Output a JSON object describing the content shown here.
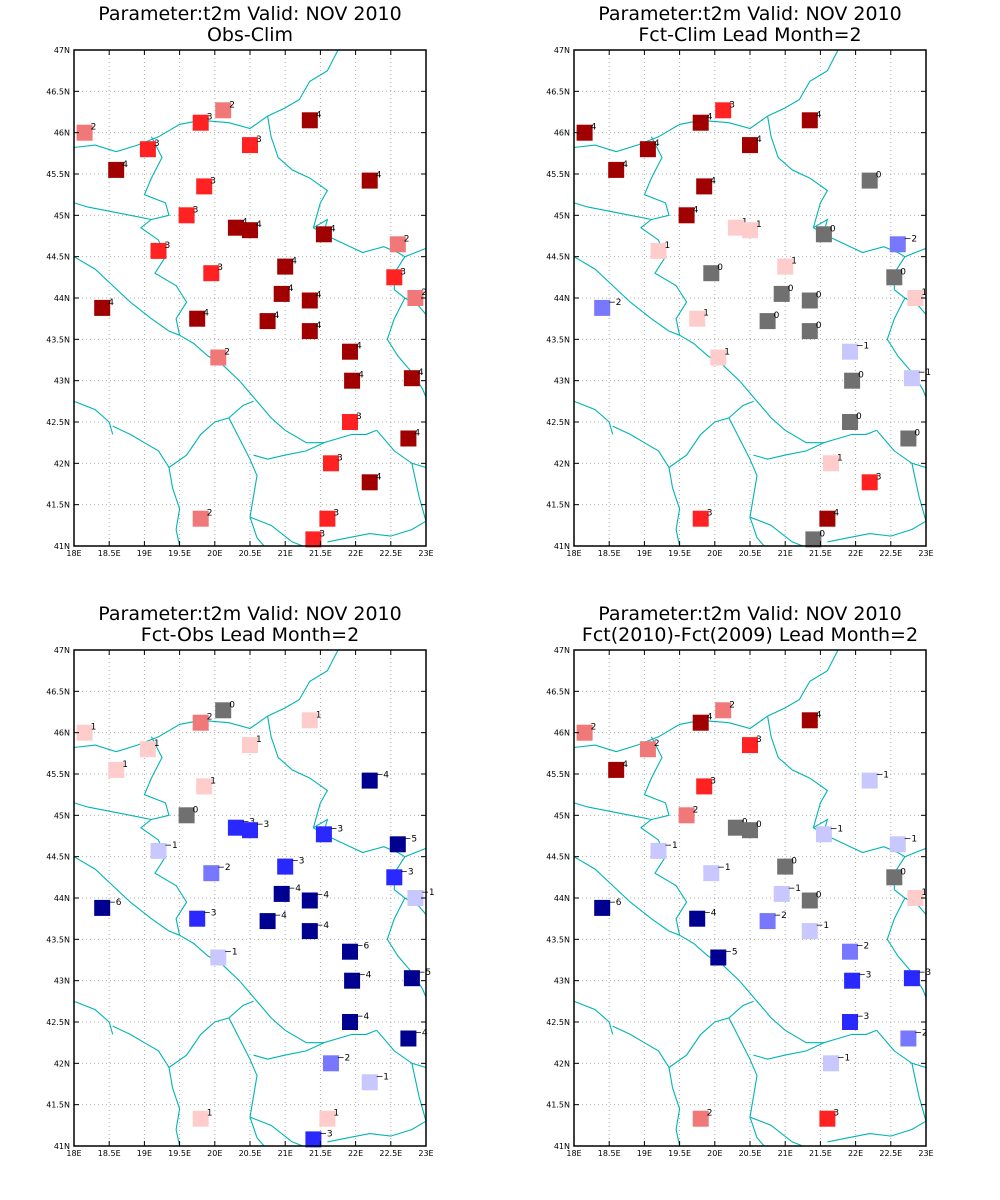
{
  "domain_view": "station-anomaly-maps",
  "colors": {
    "frame": "#000000",
    "grid": "#b0b0b0",
    "coast": "#00b4b4",
    "zero": "#707070",
    "pos1": "#ffcccc",
    "pos2": "#f07878",
    "pos3": "#ff2222",
    "pos4": "#a00000",
    "neg1": "#c8c8ff",
    "neg2": "#7878ff",
    "neg3": "#2828ff",
    "neg4": "#000090"
  },
  "axes": {
    "lon_ticks": [
      "18E",
      "18.5E",
      "19E",
      "19.5E",
      "20E",
      "20.5E",
      "21E",
      "21.5E",
      "22E",
      "22.5E",
      "23E"
    ],
    "lat_ticks": [
      "41N",
      "41.5N",
      "42N",
      "42.5N",
      "43N",
      "43.5N",
      "44N",
      "44.5N",
      "45N",
      "45.5N",
      "46N",
      "46.5N",
      "47N"
    ],
    "lon_range": [
      18,
      23
    ],
    "lat_range": [
      41,
      47
    ]
  },
  "stations": [
    [
      18.15,
      46.0
    ],
    [
      18.6,
      45.55
    ],
    [
      19.05,
      45.8
    ],
    [
      19.8,
      46.12
    ],
    [
      20.12,
      46.27
    ],
    [
      20.5,
      45.85
    ],
    [
      21.35,
      46.15
    ],
    [
      19.85,
      45.35
    ],
    [
      22.2,
      45.42
    ],
    [
      19.6,
      45.0
    ],
    [
      20.3,
      44.85
    ],
    [
      20.5,
      44.82
    ],
    [
      21.55,
      44.77
    ],
    [
      22.6,
      44.65
    ],
    [
      19.2,
      44.57
    ],
    [
      19.95,
      44.3
    ],
    [
      21.0,
      44.38
    ],
    [
      22.55,
      44.25
    ],
    [
      22.85,
      44.0
    ],
    [
      20.95,
      44.05
    ],
    [
      21.35,
      43.97
    ],
    [
      18.4,
      43.88
    ],
    [
      19.75,
      43.75
    ],
    [
      20.75,
      43.72
    ],
    [
      21.35,
      43.6
    ],
    [
      20.05,
      43.28
    ],
    [
      21.92,
      43.35
    ],
    [
      21.95,
      43.0
    ],
    [
      22.8,
      43.03
    ],
    [
      21.92,
      42.5
    ],
    [
      22.75,
      42.3
    ],
    [
      21.65,
      42.0
    ],
    [
      22.2,
      41.77
    ],
    [
      19.8,
      41.33
    ],
    [
      21.6,
      41.33
    ],
    [
      21.4,
      41.08
    ]
  ],
  "panels": [
    {
      "title1": "Parameter:t2m Valid: NOV 2010",
      "title2": "Obs-Clim",
      "values": [
        2,
        4,
        3,
        3,
        2,
        3,
        4,
        3,
        4,
        3,
        4,
        4,
        4,
        2,
        3,
        3,
        4,
        3,
        2,
        4,
        4,
        4,
        4,
        4,
        4,
        2,
        4,
        4,
        4,
        3,
        4,
        3,
        4,
        2,
        3,
        3
      ]
    },
    {
      "title1": "Parameter:t2m Valid: NOV 2010",
      "title2": "Fct-Clim Lead Month=2",
      "values": [
        4,
        4,
        4,
        4,
        3,
        4,
        4,
        4,
        0,
        4,
        1,
        1,
        0,
        -2,
        1,
        0,
        1,
        0,
        1,
        0,
        0,
        -2,
        1,
        0,
        0,
        1,
        -1,
        0,
        -1,
        0,
        0,
        1,
        3,
        3,
        4,
        0
      ]
    },
    {
      "title1": "Parameter:t2m Valid: NOV 2010",
      "title2": "Fct-Obs Lead Month=2",
      "values": [
        1,
        1,
        1,
        2,
        0,
        1,
        1,
        1,
        -4,
        0,
        -3,
        -3,
        -3,
        -5,
        -1,
        -2,
        -3,
        -3,
        -1,
        -4,
        -4,
        -6,
        -3,
        -4,
        -4,
        -1,
        -6,
        -4,
        -5,
        -4,
        -4,
        -2,
        -1,
        1,
        1,
        -3
      ]
    },
    {
      "title1": "Parameter:t2m Valid: NOV 2010",
      "title2": "Fct(2010)-Fct(2009) Lead Month=2",
      "values": [
        2,
        4,
        2,
        4,
        2,
        3,
        4,
        3,
        -1,
        2,
        0,
        0,
        -1,
        -1,
        -1,
        -1,
        0,
        0,
        1,
        -1,
        0,
        -6,
        -4,
        -2,
        -1,
        -5,
        -2,
        -3,
        -3,
        -3,
        -2,
        -1,
        null,
        2,
        3,
        null
      ]
    }
  ]
}
